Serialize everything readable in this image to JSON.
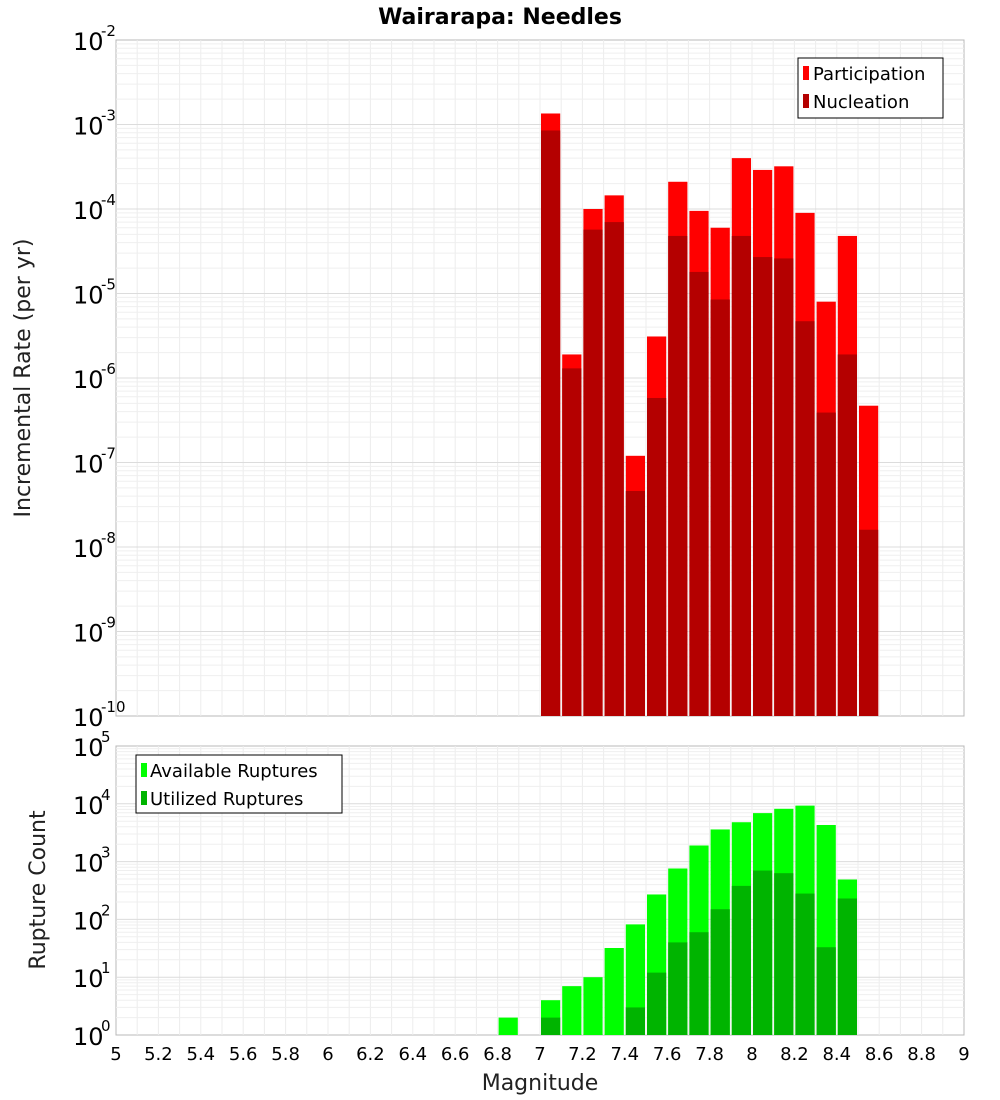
{
  "chart_data": {
    "title": "Wairarapa: Needles",
    "xlabel": "Magnitude",
    "xlim": [
      5,
      9
    ],
    "x_ticks": [
      "5",
      "5.2",
      "5.4",
      "5.6",
      "5.8",
      "6",
      "6.2",
      "6.4",
      "6.6",
      "6.8",
      "7",
      "7.2",
      "7.4",
      "7.6",
      "7.8",
      "8",
      "8.2",
      "8.4",
      "8.6",
      "8.8",
      "9"
    ],
    "panels": [
      {
        "type": "bar",
        "ylabel": "Incremental Rate (per yr)",
        "yscale": "log",
        "ylim_exp": [
          -10,
          -2
        ],
        "y_tick_exponents": [
          "-10",
          "-9",
          "-8",
          "-7",
          "-6",
          "-5",
          "-4",
          "-3",
          "-2"
        ],
        "legend_position": "top-right",
        "x": [
          7.05,
          7.15,
          7.25,
          7.35,
          7.45,
          7.55,
          7.65,
          7.75,
          7.85,
          7.95,
          8.05,
          8.15,
          8.25,
          8.35,
          8.45,
          8.55
        ],
        "series": [
          {
            "name": "Participation",
            "color": "#ff0000",
            "values": [
              0.00135,
              1.9e-06,
              0.0001,
              0.000145,
              1.2e-07,
              3.1e-06,
              0.00021,
              9.5e-05,
              6e-05,
              0.0004,
              0.00029,
              0.00032,
              9e-05,
              8e-06,
              4.8e-05,
              4.7e-07
            ]
          },
          {
            "name": "Nucleation",
            "color": "#b40000",
            "values": [
              0.00085,
              1.3e-06,
              5.7e-05,
              7e-05,
              4.6e-08,
              5.8e-07,
              4.8e-05,
              1.8e-05,
              8.5e-06,
              4.8e-05,
              2.7e-05,
              2.6e-05,
              4.7e-06,
              3.9e-07,
              1.9e-06,
              1.6e-08
            ]
          }
        ]
      },
      {
        "type": "bar",
        "ylabel": "Rupture Count",
        "yscale": "log",
        "ylim_exp": [
          0,
          5
        ],
        "y_tick_exponents": [
          "0",
          "1",
          "2",
          "3",
          "4",
          "5"
        ],
        "legend_position": "top-left",
        "x": [
          6.85,
          6.95,
          7.05,
          7.15,
          7.25,
          7.35,
          7.45,
          7.55,
          7.65,
          7.75,
          7.85,
          7.95,
          8.05,
          8.15,
          8.25,
          8.35,
          8.45,
          8.55
        ],
        "series": [
          {
            "name": "Available Ruptures",
            "color": "#00ff00",
            "values": [
              2,
              1,
              4,
              7,
              10,
              32,
              82,
              270,
              760,
              1900,
              3600,
              4800,
              6900,
              8200,
              9300,
              4300,
              490,
              1
            ]
          },
          {
            "name": "Utilized Ruptures",
            "color": "#00b400",
            "values": [
              0,
              0,
              2,
              1,
              1,
              1,
              3,
              12,
              40,
              60,
              150,
              380,
              700,
              630,
              280,
              33,
              230,
              1
            ]
          }
        ]
      }
    ]
  }
}
